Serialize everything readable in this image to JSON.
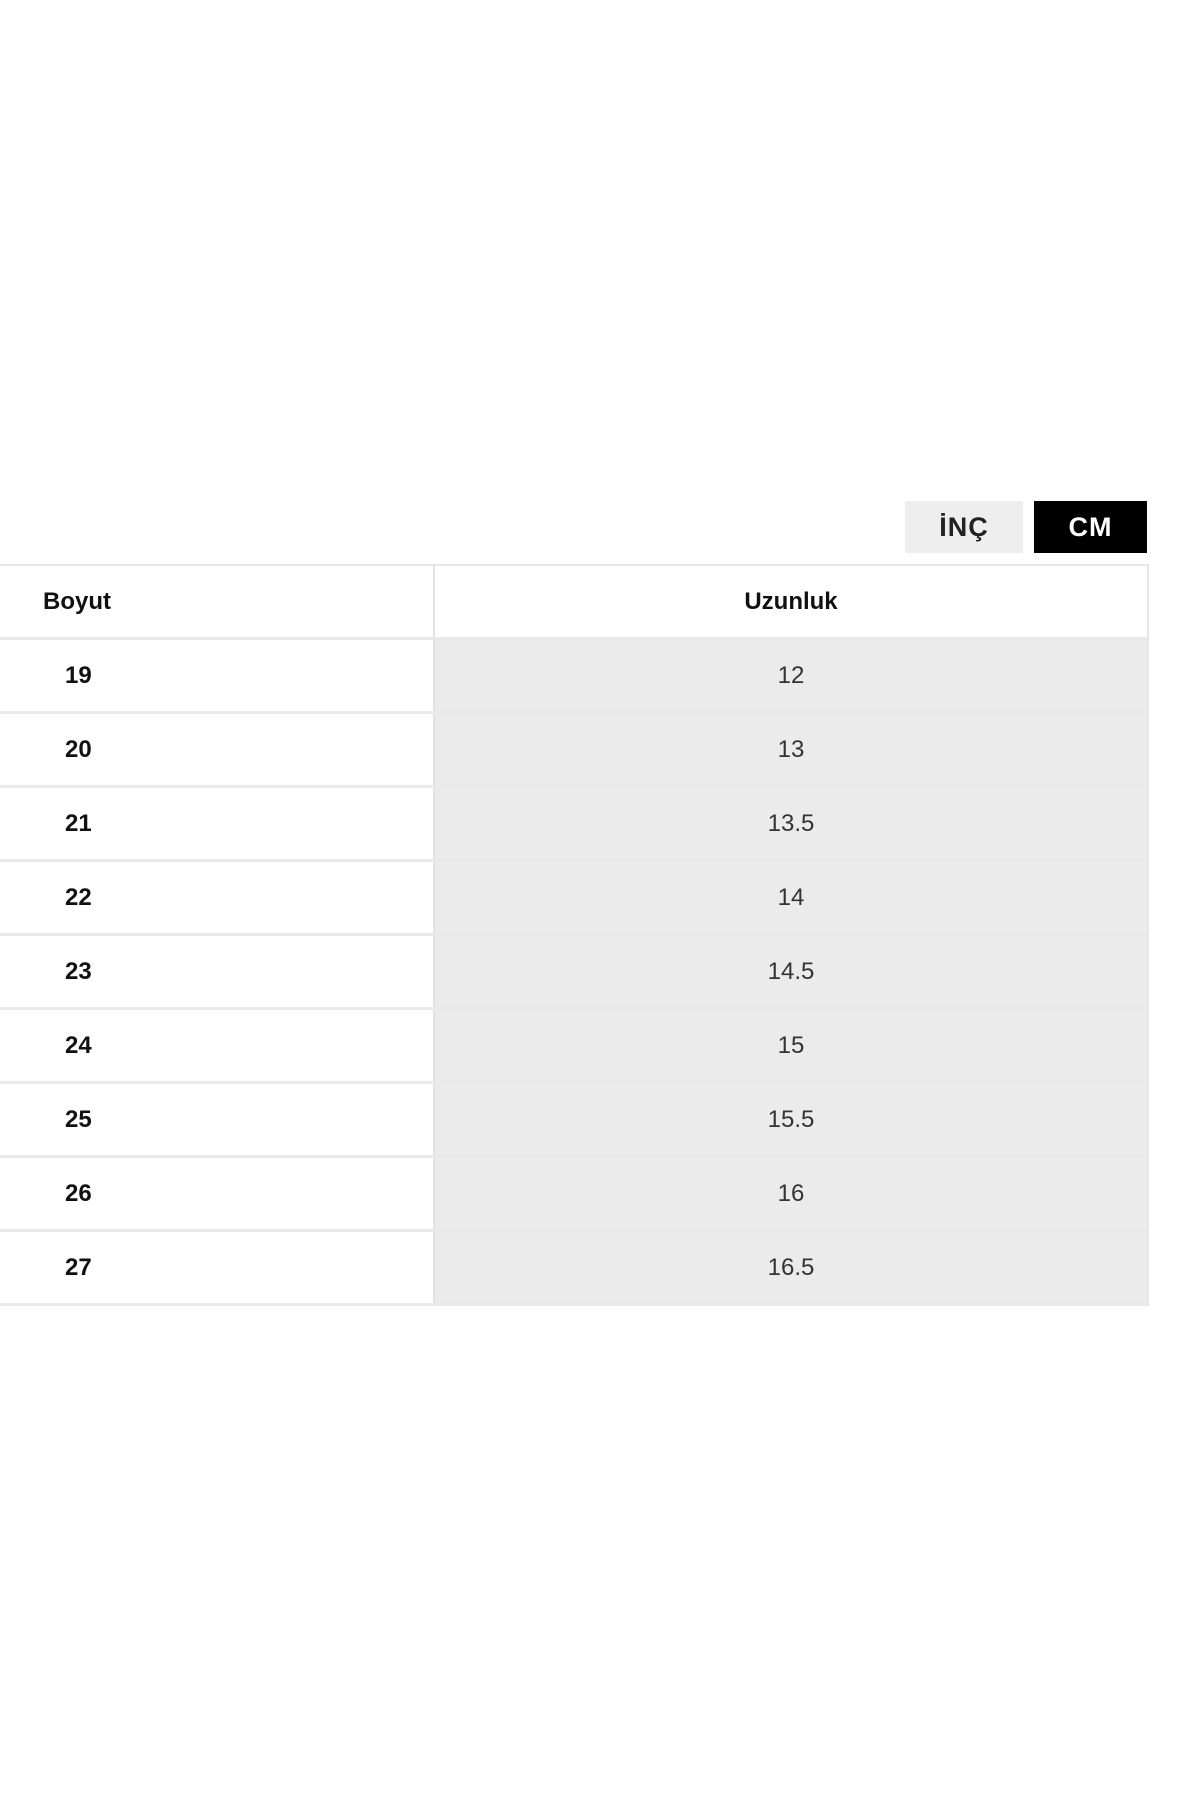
{
  "unit_toggle": {
    "options": [
      "İNÇ",
      "CM"
    ],
    "selected": "CM"
  },
  "table": {
    "headers": [
      "Boyut",
      "Uzunluk"
    ],
    "rows": [
      [
        "19",
        "12"
      ],
      [
        "20",
        "13"
      ],
      [
        "21",
        "13.5"
      ],
      [
        "22",
        "14"
      ],
      [
        "23",
        "14.5"
      ],
      [
        "24",
        "15"
      ],
      [
        "25",
        "15.5"
      ],
      [
        "26",
        "16"
      ],
      [
        "27",
        "16.5"
      ]
    ]
  },
  "colors": {
    "selected_bg": "#000000",
    "unselected_bg": "#eeeeee",
    "cell_bg": "#ebebeb"
  }
}
